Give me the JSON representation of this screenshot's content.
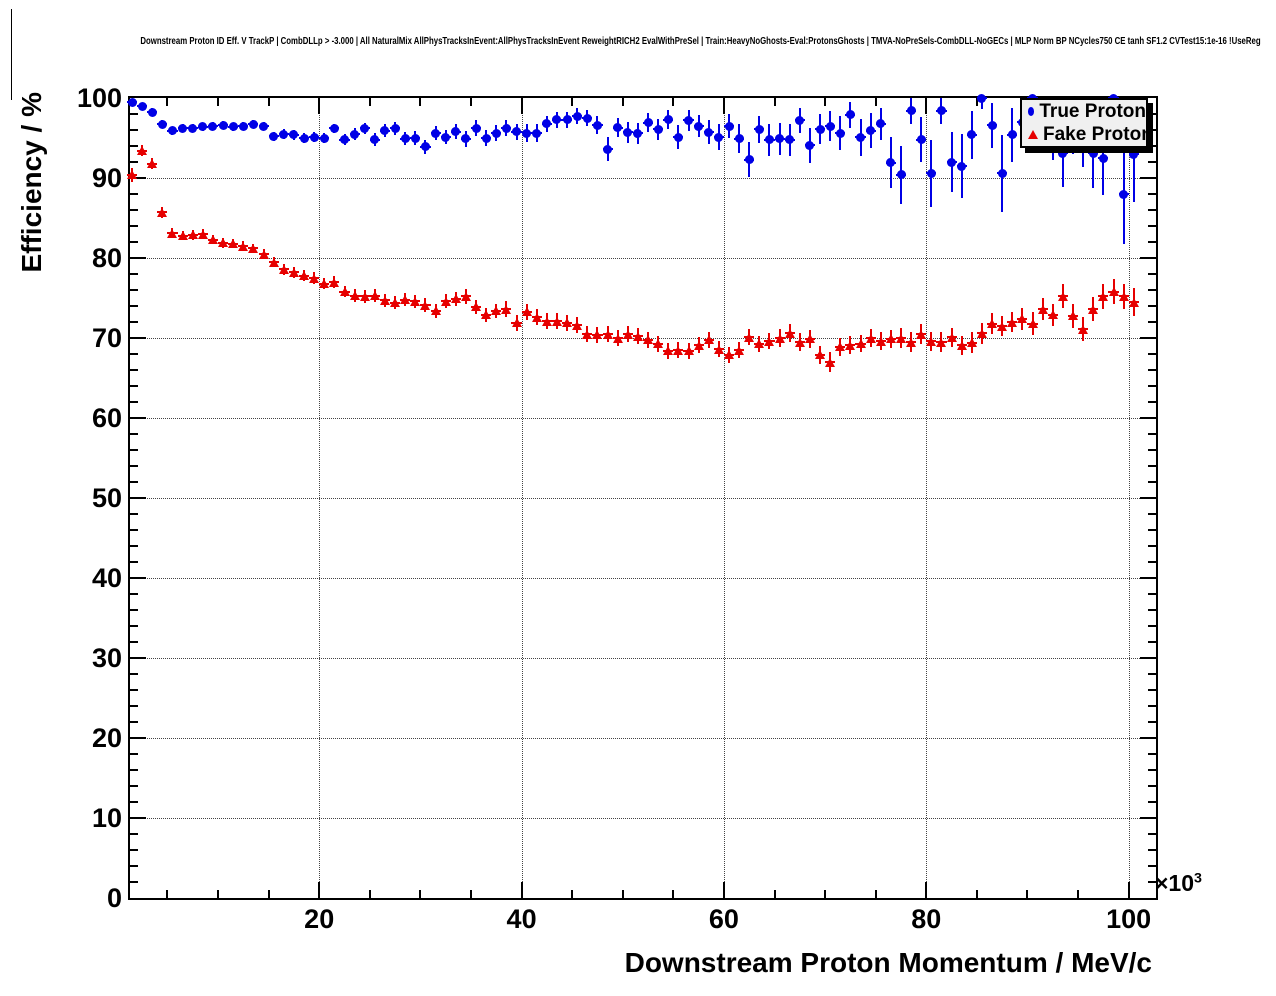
{
  "title": "Downstream Proton ID Eff. V TrackP | CombDLLp > -3.000 | All NaturalMix AllPhysTracksInEvent:AllPhysTracksInEvent ReweightRICH2 EvalWithPreSel | Train:HeavyNoGhosts-Eval:ProtonsGhosts | TMVA-NoPreSels-CombDLL-NoGECs | MLP Norm BP NCycles750 CE tanh SF1.2 CVTest15:1e-16 !UseReg",
  "legend": {
    "entries": [
      {
        "label": "True Proton",
        "marker": "circle",
        "color": "#0000e6"
      },
      {
        "label": "Fake Proton",
        "marker": "triangle",
        "color": "#e60000"
      }
    ]
  },
  "chart_data": {
    "type": "scatter",
    "title": "Downstream Proton ID Eff. V TrackP | CombDLLp > -3.000 | All NaturalMix AllPhysTracksInEvent:AllPhysTracksInEvent ReweightRICH2 EvalWithPreSel | Train:HeavyNoGhosts-Eval:ProtonsGhosts | TMVA-NoPreSels-CombDLL-NoGECs | MLP Norm BP NCycles750 CE tanh SF1.2 CVTest15:1e-16 !UseReg",
    "xlabel": "Downstream Proton Momentum / MeV/c",
    "ylabel": "Efficiency / %",
    "x_scale_base": "×10",
    "x_scale_exp": "3",
    "x_unit_multiplier": 1000,
    "xlim": [
      1.3,
      102.7
    ],
    "ylim": [
      0,
      100
    ],
    "x_ticks": [
      20,
      40,
      60,
      80,
      100
    ],
    "y_ticks": [
      0,
      10,
      20,
      30,
      40,
      50,
      60,
      70,
      80,
      90,
      100
    ],
    "x_minor_step": 5,
    "y_minor_step": 2,
    "grid": true,
    "legend_position": "top-right",
    "x_halfwidth": 0.5,
    "series": [
      {
        "name": "Fake Proton",
        "marker": "triangle",
        "color": "#e60000",
        "points": [
          [
            1.5,
            90.4,
            0.9
          ],
          [
            2.5,
            93.4,
            0.7
          ],
          [
            3.5,
            91.8,
            0.7
          ],
          [
            4.5,
            85.7,
            0.7
          ],
          [
            5.5,
            83.1,
            0.6
          ],
          [
            6.5,
            82.8,
            0.6
          ],
          [
            7.5,
            82.9,
            0.6
          ],
          [
            8.5,
            83.0,
            0.6
          ],
          [
            9.5,
            82.3,
            0.6
          ],
          [
            10.5,
            81.9,
            0.6
          ],
          [
            11.5,
            81.8,
            0.6
          ],
          [
            12.5,
            81.5,
            0.6
          ],
          [
            13.5,
            81.2,
            0.6
          ],
          [
            14.5,
            80.5,
            0.6
          ],
          [
            15.5,
            79.5,
            0.6
          ],
          [
            16.5,
            78.6,
            0.7
          ],
          [
            17.5,
            78.2,
            0.7
          ],
          [
            18.5,
            77.8,
            0.7
          ],
          [
            19.5,
            77.5,
            0.7
          ],
          [
            20.5,
            76.8,
            0.7
          ],
          [
            21.5,
            77.0,
            0.7
          ],
          [
            22.5,
            75.8,
            0.7
          ],
          [
            23.5,
            75.3,
            0.8
          ],
          [
            24.5,
            75.2,
            0.8
          ],
          [
            25.5,
            75.3,
            0.8
          ],
          [
            26.5,
            74.7,
            0.8
          ],
          [
            27.5,
            74.4,
            0.8
          ],
          [
            28.5,
            74.8,
            0.8
          ],
          [
            29.5,
            74.6,
            0.8
          ],
          [
            30.5,
            74.1,
            0.9
          ],
          [
            31.5,
            73.4,
            0.9
          ],
          [
            32.5,
            74.6,
            0.9
          ],
          [
            33.5,
            74.9,
            0.9
          ],
          [
            34.5,
            75.2,
            0.9
          ],
          [
            35.5,
            73.9,
            0.9
          ],
          [
            36.5,
            72.9,
            0.9
          ],
          [
            37.5,
            73.4,
            0.9
          ],
          [
            38.5,
            73.6,
            1.0
          ],
          [
            39.5,
            71.9,
            1.0
          ],
          [
            40.5,
            73.3,
            1.0
          ],
          [
            41.5,
            72.6,
            1.0
          ],
          [
            42.5,
            72.1,
            1.0
          ],
          [
            43.5,
            72.1,
            1.0
          ],
          [
            44.5,
            71.9,
            1.0
          ],
          [
            45.5,
            71.6,
            1.0
          ],
          [
            46.5,
            70.5,
            1.0
          ],
          [
            47.5,
            70.4,
            1.0
          ],
          [
            48.5,
            70.5,
            1.0
          ],
          [
            49.5,
            70.0,
            1.0
          ],
          [
            50.5,
            70.5,
            1.0
          ],
          [
            51.5,
            70.2,
            1.0
          ],
          [
            52.5,
            69.8,
            1.0
          ],
          [
            53.5,
            69.3,
            1.0
          ],
          [
            54.5,
            68.4,
            1.0
          ],
          [
            55.5,
            68.5,
            1.0
          ],
          [
            56.5,
            68.4,
            1.0
          ],
          [
            57.5,
            69.1,
            1.0
          ],
          [
            58.5,
            69.8,
            1.0
          ],
          [
            59.5,
            68.6,
            1.0
          ],
          [
            60.5,
            67.9,
            1.0
          ],
          [
            61.5,
            68.5,
            1.0
          ],
          [
            62.5,
            70.1,
            1.0
          ],
          [
            63.5,
            69.3,
            1.0
          ],
          [
            64.5,
            69.6,
            1.0
          ],
          [
            65.5,
            70.0,
            1.1
          ],
          [
            66.5,
            70.6,
            1.1
          ],
          [
            67.5,
            69.5,
            1.1
          ],
          [
            68.5,
            69.9,
            1.1
          ],
          [
            69.5,
            67.9,
            1.1
          ],
          [
            70.5,
            67.0,
            1.2
          ],
          [
            71.5,
            68.9,
            1.1
          ],
          [
            72.5,
            69.1,
            1.1
          ],
          [
            73.5,
            69.3,
            1.1
          ],
          [
            74.5,
            70.0,
            1.1
          ],
          [
            75.5,
            69.6,
            1.1
          ],
          [
            76.5,
            69.9,
            1.1
          ],
          [
            77.5,
            70.0,
            1.2
          ],
          [
            78.5,
            69.5,
            1.2
          ],
          [
            79.5,
            70.5,
            1.2
          ],
          [
            80.5,
            69.6,
            1.2
          ],
          [
            81.5,
            69.5,
            1.2
          ],
          [
            82.5,
            70.1,
            1.2
          ],
          [
            83.5,
            69.1,
            1.2
          ],
          [
            84.5,
            69.4,
            1.3
          ],
          [
            85.5,
            70.6,
            1.3
          ],
          [
            86.5,
            71.8,
            1.3
          ],
          [
            87.5,
            71.5,
            1.3
          ],
          [
            88.5,
            72.0,
            1.3
          ],
          [
            89.5,
            72.4,
            1.4
          ],
          [
            90.5,
            71.8,
            1.4
          ],
          [
            91.5,
            73.6,
            1.4
          ],
          [
            92.5,
            72.9,
            1.4
          ],
          [
            93.5,
            75.2,
            1.5
          ],
          [
            94.5,
            72.8,
            1.5
          ],
          [
            95.5,
            71.1,
            1.5
          ],
          [
            96.5,
            73.6,
            1.5
          ],
          [
            97.5,
            75.2,
            1.6
          ],
          [
            98.5,
            75.8,
            1.6
          ],
          [
            99.5,
            75.2,
            1.6
          ],
          [
            100.5,
            74.5,
            1.7
          ]
        ]
      },
      {
        "name": "True Proton",
        "marker": "circle",
        "color": "#0000e6",
        "points": [
          [
            1.5,
            99.5,
            0.3
          ],
          [
            2.5,
            99.0,
            0.4
          ],
          [
            3.5,
            98.2,
            0.5
          ],
          [
            4.5,
            96.7,
            0.5
          ],
          [
            5.5,
            95.9,
            0.5
          ],
          [
            6.5,
            96.2,
            0.5
          ],
          [
            7.5,
            96.2,
            0.5
          ],
          [
            8.5,
            96.4,
            0.5
          ],
          [
            9.5,
            96.5,
            0.5
          ],
          [
            10.5,
            96.6,
            0.5
          ],
          [
            11.5,
            96.4,
            0.5
          ],
          [
            12.5,
            96.5,
            0.5
          ],
          [
            13.5,
            96.7,
            0.5
          ],
          [
            14.5,
            96.5,
            0.5
          ],
          [
            15.5,
            95.2,
            0.6
          ],
          [
            16.5,
            95.5,
            0.6
          ],
          [
            17.5,
            95.4,
            0.6
          ],
          [
            18.5,
            95.0,
            0.6
          ],
          [
            19.5,
            95.1,
            0.6
          ],
          [
            20.5,
            95.0,
            0.6
          ],
          [
            21.5,
            96.2,
            0.6
          ],
          [
            22.5,
            94.8,
            0.7
          ],
          [
            23.5,
            95.5,
            0.7
          ],
          [
            24.5,
            96.2,
            0.7
          ],
          [
            25.5,
            94.8,
            0.8
          ],
          [
            26.5,
            95.9,
            0.8
          ],
          [
            27.5,
            96.2,
            0.8
          ],
          [
            28.5,
            94.9,
            0.8
          ],
          [
            29.5,
            95.0,
            0.9
          ],
          [
            30.5,
            93.9,
            0.9
          ],
          [
            31.5,
            95.6,
            0.9
          ],
          [
            32.5,
            95.1,
            0.9
          ],
          [
            33.5,
            95.8,
            0.9
          ],
          [
            34.5,
            94.9,
            1.0
          ],
          [
            35.5,
            96.2,
            1.0
          ],
          [
            36.5,
            95.0,
            1.0
          ],
          [
            37.5,
            95.6,
            1.0
          ],
          [
            38.5,
            96.2,
            1.0
          ],
          [
            39.5,
            95.8,
            1.0
          ],
          [
            40.5,
            95.6,
            1.1
          ],
          [
            41.5,
            95.6,
            1.1
          ],
          [
            42.5,
            96.8,
            1.0
          ],
          [
            43.5,
            97.3,
            1.0
          ],
          [
            44.5,
            97.3,
            1.0
          ],
          [
            45.5,
            97.7,
            1.0
          ],
          [
            46.5,
            97.5,
            1.0
          ],
          [
            47.5,
            96.6,
            1.1
          ],
          [
            48.5,
            93.6,
            1.5
          ],
          [
            49.5,
            96.3,
            1.2
          ],
          [
            50.5,
            95.7,
            1.3
          ],
          [
            51.5,
            95.6,
            1.3
          ],
          [
            52.5,
            96.9,
            1.2
          ],
          [
            53.5,
            96.1,
            1.3
          ],
          [
            54.5,
            97.3,
            1.2
          ],
          [
            55.5,
            95.1,
            1.5
          ],
          [
            56.5,
            97.2,
            1.3
          ],
          [
            57.5,
            96.5,
            1.4
          ],
          [
            58.5,
            95.7,
            1.5
          ],
          [
            59.5,
            95.1,
            1.6
          ],
          [
            60.5,
            96.5,
            1.5
          ],
          [
            61.5,
            94.9,
            1.8
          ],
          [
            62.5,
            92.3,
            2.2
          ],
          [
            63.5,
            96.1,
            1.7
          ],
          [
            64.5,
            94.8,
            2.0
          ],
          [
            65.5,
            94.9,
            2.0
          ],
          [
            66.5,
            94.8,
            2.0
          ],
          [
            67.5,
            97.2,
            1.6
          ],
          [
            68.5,
            94.1,
            2.2
          ],
          [
            69.5,
            96.1,
            1.9
          ],
          [
            70.5,
            96.5,
            1.9
          ],
          [
            71.5,
            95.6,
            2.1
          ],
          [
            72.5,
            97.9,
            1.6
          ],
          [
            73.5,
            95.1,
            2.3
          ],
          [
            74.5,
            95.9,
            2.2
          ],
          [
            75.5,
            96.8,
            2.0
          ],
          [
            76.5,
            91.9,
            3.2
          ],
          [
            77.5,
            90.4,
            3.6
          ],
          [
            78.5,
            98.4,
            1.6
          ],
          [
            79.5,
            94.8,
            2.8
          ],
          [
            80.5,
            90.6,
            4.2
          ],
          [
            81.5,
            98.4,
            1.6
          ],
          [
            82.5,
            92.0,
            3.8
          ],
          [
            83.5,
            91.5,
            4.0
          ],
          [
            84.5,
            95.4,
            3.0
          ],
          [
            85.5,
            100.0,
            1.4
          ],
          [
            86.5,
            96.6,
            2.8
          ],
          [
            87.5,
            90.6,
            4.8
          ],
          [
            88.5,
            95.4,
            3.4
          ],
          [
            89.5,
            97.0,
            3.0
          ],
          [
            90.5,
            100.0,
            1.6
          ],
          [
            91.5,
            96.8,
            3.2
          ],
          [
            92.5,
            95.8,
            3.6
          ],
          [
            93.5,
            93.1,
            4.2
          ],
          [
            94.5,
            96.4,
            3.4
          ],
          [
            95.5,
            95.2,
            3.8
          ],
          [
            96.5,
            93.1,
            4.4
          ],
          [
            97.5,
            92.5,
            4.6
          ],
          [
            98.5,
            100.0,
            2.0
          ],
          [
            99.5,
            88.0,
            6.2
          ],
          [
            100.5,
            93.0,
            6.0
          ]
        ]
      }
    ]
  }
}
